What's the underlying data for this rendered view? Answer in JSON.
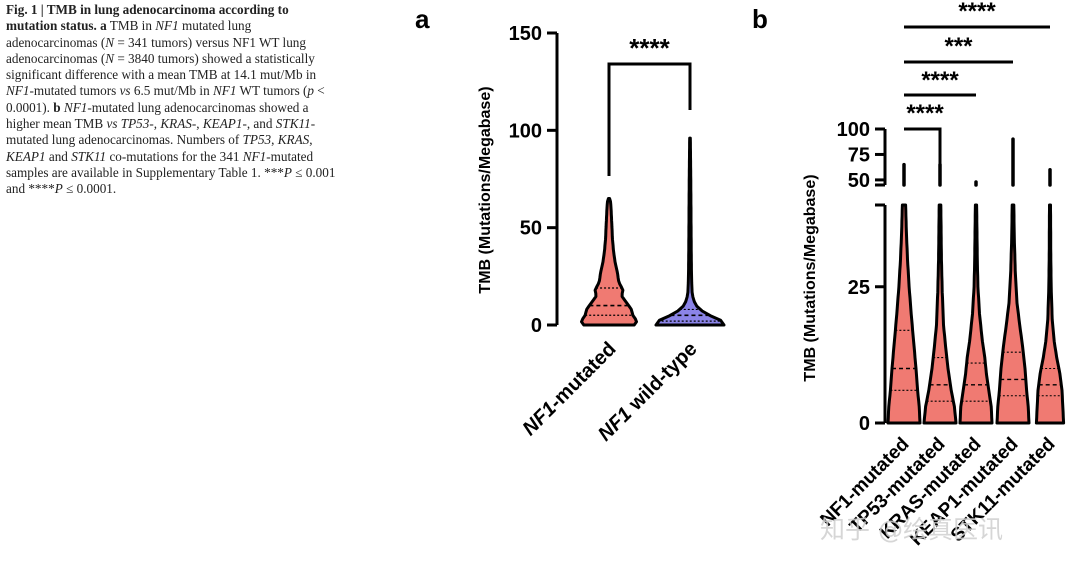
{
  "caption": [
    {
      "t": "Fig. 1 | TMB in lung adenocarcinoma according to mutation status.",
      "b": true
    },
    {
      "t": " "
    },
    {
      "t": "a",
      "b": true
    },
    {
      "t": " TMB in "
    },
    {
      "t": "NF1",
      "i": true
    },
    {
      "t": " mutated lung adenocarcinomas ("
    },
    {
      "t": "N",
      "i": true
    },
    {
      "t": " = 341 tumors) versus NF1 WT lung adenocarcinomas ("
    },
    {
      "t": "N",
      "i": true
    },
    {
      "t": " = 3840 tumors) showed a statistically significant difference with a mean TMB at 14.1 mut/Mb in "
    },
    {
      "t": "NF1",
      "i": true
    },
    {
      "t": "-mutated tumors "
    },
    {
      "t": "vs",
      "i": true
    },
    {
      "t": " 6.5 mut/Mb in "
    },
    {
      "t": "NF1",
      "i": true
    },
    {
      "t": " WT tumors ("
    },
    {
      "t": "p",
      "i": true
    },
    {
      "t": " < 0.0001). "
    },
    {
      "t": "b",
      "b": true
    },
    {
      "t": " "
    },
    {
      "t": "NF1",
      "i": true
    },
    {
      "t": "-mutated lung adenocarcinomas showed a higher mean TMB "
    },
    {
      "t": "vs",
      "i": true
    },
    {
      "t": " "
    },
    {
      "t": "TP53",
      "i": true
    },
    {
      "t": "-, "
    },
    {
      "t": "KRAS",
      "i": true
    },
    {
      "t": "-, "
    },
    {
      "t": "KEAP1",
      "i": true
    },
    {
      "t": "-, and "
    },
    {
      "t": "STK11",
      "i": true
    },
    {
      "t": "-mutated lung adenocarcinomas. Numbers of "
    },
    {
      "t": "TP53",
      "i": true
    },
    {
      "t": ", "
    },
    {
      "t": "KRAS",
      "i": true
    },
    {
      "t": ", "
    },
    {
      "t": "KEAP1",
      "i": true
    },
    {
      "t": " and "
    },
    {
      "t": "STK11",
      "i": true
    },
    {
      "t": " co-mutations for the 341 "
    },
    {
      "t": "NF1",
      "i": true
    },
    {
      "t": "-mutated samples are available in Supplementary Table 1. ***"
    },
    {
      "t": "P",
      "i": true
    },
    {
      "t": " ≤ 0.001 and ****"
    },
    {
      "t": "P",
      "i": true
    },
    {
      "t": " ≤ 0.0001."
    }
  ],
  "colors": {
    "red": "#f07a72",
    "blue": "#8b84e8",
    "axis": "#000000"
  },
  "watermark": "知乎 @绘真医讯",
  "chart_data": [
    {
      "panel": "a",
      "type": "violin",
      "ylabel": "TMB (Mutations/Megabase)",
      "ylim": [
        0,
        150
      ],
      "yticks": [
        0,
        50,
        100,
        150
      ],
      "categories": [
        {
          "label": "NF1-mutated",
          "italic_prefix": "NF1",
          "rest": "-mutated",
          "color": "red",
          "max": 65,
          "median": 10,
          "q1": 5,
          "q3": 19,
          "profile": [
            [
              0,
              0.9
            ],
            [
              2,
              1.0
            ],
            [
              5,
              0.85
            ],
            [
              8,
              0.8
            ],
            [
              12,
              0.6
            ],
            [
              15,
              0.45
            ],
            [
              18,
              0.5
            ],
            [
              22,
              0.35
            ],
            [
              27,
              0.3
            ],
            [
              32,
              0.22
            ],
            [
              38,
              0.16
            ],
            [
              45,
              0.12
            ],
            [
              52,
              0.1
            ],
            [
              58,
              0.08
            ],
            [
              63,
              0.06
            ],
            [
              65,
              0.02
            ]
          ]
        },
        {
          "label": "NF1 wild-type",
          "italic_prefix": "NF1",
          "rest": " wild-type",
          "color": "blue",
          "max": 96,
          "median": 5,
          "q1": 2,
          "q3": 8,
          "profile": [
            [
              0,
              1.0
            ],
            [
              2,
              0.95
            ],
            [
              4,
              0.7
            ],
            [
              6,
              0.45
            ],
            [
              8,
              0.3
            ],
            [
              10,
              0.18
            ],
            [
              13,
              0.1
            ],
            [
              17,
              0.06
            ],
            [
              25,
              0.045
            ],
            [
              40,
              0.035
            ],
            [
              60,
              0.028
            ],
            [
              80,
              0.02
            ],
            [
              96,
              0.01
            ]
          ]
        }
      ],
      "significance": [
        {
          "from": 0,
          "to": 1,
          "label": "****"
        }
      ]
    },
    {
      "panel": "b",
      "type": "violin",
      "ylabel": "TMB (Mutations/Megabase)",
      "axis_break": true,
      "lower_ylim": [
        0,
        40
      ],
      "lower_yticks": [
        0,
        25
      ],
      "upper_ylim": [
        45,
        100
      ],
      "upper_yticks": [
        50,
        75,
        100
      ],
      "categories": [
        {
          "label": "NF1-mutated",
          "color": "red",
          "median": 10,
          "q1": 6,
          "q3": 17,
          "max": 65,
          "profile": [
            [
              0,
              1.0
            ],
            [
              3,
              0.95
            ],
            [
              6,
              0.85
            ],
            [
              10,
              0.75
            ],
            [
              15,
              0.6
            ],
            [
              20,
              0.45
            ],
            [
              25,
              0.32
            ],
            [
              30,
              0.22
            ],
            [
              35,
              0.15
            ],
            [
              40,
              0.1
            ]
          ]
        },
        {
          "label": "TP53-mutated",
          "color": "red",
          "median": 7,
          "q1": 4,
          "q3": 12,
          "max": 65,
          "profile": [
            [
              0,
              1.0
            ],
            [
              3,
              0.9
            ],
            [
              6,
              0.7
            ],
            [
              10,
              0.5
            ],
            [
              14,
              0.35
            ],
            [
              18,
              0.22
            ],
            [
              24,
              0.14
            ],
            [
              30,
              0.09
            ],
            [
              35,
              0.07
            ],
            [
              40,
              0.05
            ]
          ]
        },
        {
          "label": "KRAS-mutated",
          "color": "red",
          "median": 7,
          "q1": 4,
          "q3": 11,
          "max": 48,
          "profile": [
            [
              0,
              1.0
            ],
            [
              3,
              0.95
            ],
            [
              6,
              0.8
            ],
            [
              9,
              0.65
            ],
            [
              12,
              0.55
            ],
            [
              15,
              0.4
            ],
            [
              20,
              0.22
            ],
            [
              25,
              0.12
            ],
            [
              30,
              0.08
            ],
            [
              35,
              0.06
            ],
            [
              40,
              0.04
            ]
          ]
        },
        {
          "label": "KEAP1-mutated",
          "color": "red",
          "median": 8,
          "q1": 5,
          "q3": 13,
          "max": 90,
          "profile": [
            [
              0,
              1.0
            ],
            [
              3,
              0.95
            ],
            [
              6,
              0.85
            ],
            [
              10,
              0.75
            ],
            [
              14,
              0.6
            ],
            [
              18,
              0.42
            ],
            [
              22,
              0.25
            ],
            [
              28,
              0.14
            ],
            [
              34,
              0.08
            ],
            [
              40,
              0.05
            ]
          ]
        },
        {
          "label": "STK11-mutated",
          "color": "red",
          "median": 7,
          "q1": 5,
          "q3": 10,
          "max": 60,
          "profile": [
            [
              0,
              0.85
            ],
            [
              3,
              0.8
            ],
            [
              6,
              0.75
            ],
            [
              9,
              0.62
            ],
            [
              12,
              0.42
            ],
            [
              15,
              0.26
            ],
            [
              19,
              0.14
            ],
            [
              24,
              0.08
            ],
            [
              30,
              0.05
            ],
            [
              36,
              0.04
            ],
            [
              40,
              0.03
            ]
          ]
        }
      ],
      "significance": [
        {
          "from": 0,
          "to": 1,
          "label": "****"
        },
        {
          "from": 0,
          "to": 2,
          "label": "****"
        },
        {
          "from": 0,
          "to": 3,
          "label": "***"
        },
        {
          "from": 0,
          "to": 4,
          "label": "****"
        }
      ]
    }
  ]
}
